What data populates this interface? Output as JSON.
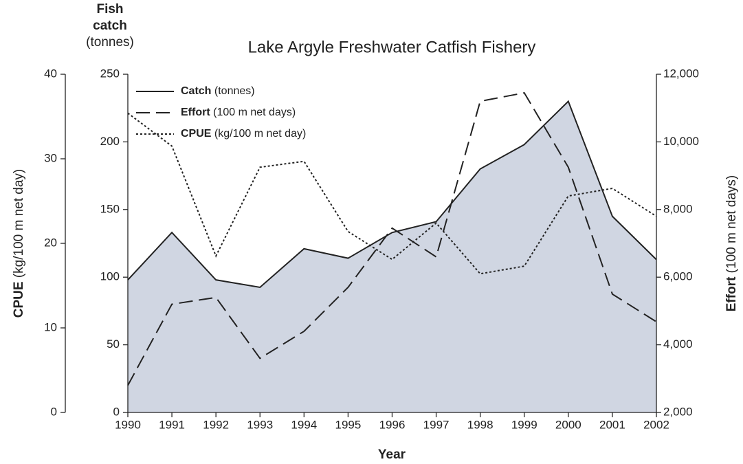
{
  "chart_data": {
    "type": "line",
    "title": "Lake Argyle Freshwater Catfish Fishery",
    "xlabel": "Year",
    "ylabel_lines": [
      "Fish",
      "catch",
      "(tonnes)"
    ],
    "y2label_bold": "Effort",
    "y2label_rest": "(100 m net days)",
    "y3label_bold": "CPUE",
    "y3label_rest": "(kg/100 m net day)",
    "x": [
      1990,
      1991,
      1992,
      1993,
      1994,
      1995,
      1996,
      1997,
      1998,
      1999,
      2000,
      2001,
      2002
    ],
    "xlim": [
      1990,
      2002
    ],
    "xticks": [
      1990,
      1991,
      1992,
      1993,
      1994,
      1995,
      1996,
      1997,
      1998,
      1999,
      2000,
      2001,
      2002
    ],
    "ylim": [
      0,
      250
    ],
    "yticks": [
      0,
      50,
      100,
      150,
      200,
      250
    ],
    "y2lim": [
      2000,
      12000
    ],
    "y2ticks": [
      {
        "value": 2000,
        "label": "2,000"
      },
      {
        "value": 4000,
        "label": "4,000"
      },
      {
        "value": 6000,
        "label": "6,000"
      },
      {
        "value": 8000,
        "label": "8,000"
      },
      {
        "value": 10000,
        "label": "10,000"
      },
      {
        "value": 12000,
        "label": "12,000"
      }
    ],
    "y3lim": [
      0,
      40
    ],
    "y3ticks": [
      0,
      10,
      20,
      30,
      40
    ],
    "legend": "upper left",
    "series": [
      {
        "name": "Catch",
        "unit": "(tonnes)",
        "color": "#222222",
        "fill": "#d0d6e2",
        "style": "solid",
        "axis": "y",
        "values": [
          98,
          133,
          98,
          92.5,
          121,
          114,
          133,
          141,
          180,
          198,
          230,
          145,
          113
        ]
      },
      {
        "name": "Effort",
        "unit": "(100 m net days)",
        "color": "#222222",
        "style": "dashed",
        "axis": "y2",
        "values": [
          2800,
          5200,
          5400,
          3600,
          4400,
          5700,
          7450,
          6600,
          11200,
          11450,
          9250,
          5500,
          4680
        ]
      },
      {
        "name": "CPUE",
        "unit": "(kg/100 m net day)",
        "color": "#222222",
        "style": "dotted",
        "axis": "y3",
        "values": [
          35.4,
          31.5,
          18.5,
          29,
          29.7,
          21.4,
          18.1,
          22.4,
          16.4,
          17.3,
          25.6,
          26.5,
          23.2
        ]
      }
    ]
  }
}
